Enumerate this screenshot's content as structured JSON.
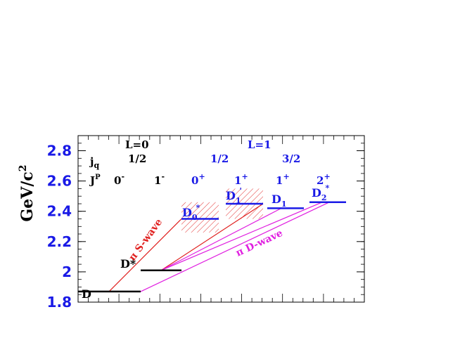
{
  "chart_data": {
    "type": "diagram",
    "ylabel": "GeV/c",
    "ylabel_sup": "2",
    "ylim": [
      1.8,
      2.9
    ],
    "y_ticks": [
      "1.8",
      "2",
      "2.2",
      "2.4",
      "2.6",
      "2.8"
    ],
    "y_tick_values": [
      1.8,
      2.0,
      2.2,
      2.4,
      2.6,
      2.8
    ],
    "header": {
      "L0": "L=0",
      "L1": "L=1",
      "jq_label": "j",
      "jq_sub": "q",
      "jq_values": [
        "1/2",
        "1/2",
        "3/2"
      ],
      "JP_label": "J",
      "JP_sup": "P",
      "JP_values": [
        {
          "base": "0",
          "sup": "-"
        },
        {
          "base": "1",
          "sup": "-"
        },
        {
          "base": "0",
          "sup": "+"
        },
        {
          "base": "1",
          "sup": "+"
        },
        {
          "base": "1",
          "sup": "+"
        },
        {
          "base": "2",
          "sup": "+"
        }
      ]
    },
    "states": [
      {
        "name": "D",
        "mass": 1.87,
        "color": "#000000"
      },
      {
        "name": "D*",
        "mass": 2.01,
        "color": "#000000"
      },
      {
        "name": "D",
        "sub": "0",
        "sup": "*",
        "mass": 2.35,
        "color": "#1a1ae6",
        "band": [
          2.26,
          2.46
        ]
      },
      {
        "name": "D",
        "sub": "1",
        "sup": "'",
        "mass": 2.45,
        "color": "#1a1ae6",
        "band": [
          2.35,
          2.55
        ]
      },
      {
        "name": "D",
        "sub": "1",
        "mass": 2.42,
        "color": "#1a1ae6"
      },
      {
        "name": "D",
        "sub": "2",
        "sup": "*",
        "mass": 2.46,
        "color": "#1a1ae6"
      }
    ],
    "transitions": {
      "s_wave_label": "π S-wave",
      "d_wave_label": "π D-wave",
      "s_wave_color": "#e0201f",
      "d_wave_color": "#e020e0"
    }
  }
}
